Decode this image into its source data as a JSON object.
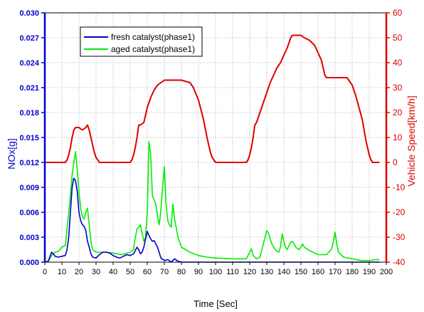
{
  "chart_data": {
    "type": "line",
    "xlabel": "Time [Sec]",
    "ylabel_left": "NOx[g]",
    "ylabel_right": "Vehicle Speed[km/h]",
    "xlim": [
      0,
      200
    ],
    "ylim_left": [
      0,
      0.03
    ],
    "ylim_right": [
      -40,
      60
    ],
    "x_ticks": [
      0,
      10,
      20,
      30,
      40,
      50,
      60,
      70,
      80,
      90,
      100,
      110,
      120,
      130,
      140,
      150,
      160,
      170,
      180,
      190,
      200
    ],
    "y_left_ticks": [
      "0.000",
      "0.003",
      "0.006",
      "0.009",
      "0.012",
      "0.015",
      "0.018",
      "0.021",
      "0.024",
      "0.027",
      "0.030"
    ],
    "y_right_ticks": [
      "-40",
      "-30",
      "-20",
      "-10",
      "0",
      "10",
      "20",
      "30",
      "40",
      "50",
      "60"
    ],
    "grid": true,
    "legend_position": "top-left",
    "colors": {
      "fresh": "#0000cc",
      "aged": "#00ee00",
      "speed": "#dd0000",
      "left_axis": "#0000cc",
      "right_axis": "#dd0000"
    },
    "series": [
      {
        "name": "fresh catalyst(phase1)",
        "axis": "left",
        "color": "#0000cc",
        "x": [
          0,
          2,
          4,
          5,
          6,
          8,
          10,
          12,
          13,
          14,
          15,
          16,
          17,
          18,
          19,
          20,
          21,
          22,
          23,
          24,
          25,
          26,
          27,
          28,
          30,
          32,
          34,
          36,
          38,
          40,
          42,
          44,
          46,
          48,
          50,
          52,
          53,
          54,
          55,
          56,
          57,
          58,
          59,
          60,
          61,
          62,
          63,
          64,
          65,
          66,
          68,
          70,
          72,
          74,
          76,
          78,
          80,
          85,
          90,
          100,
          120,
          140,
          160,
          180,
          196
        ],
        "y": [
          0.0,
          0.0001,
          0.0012,
          0.001,
          0.0007,
          0.0006,
          0.0007,
          0.0008,
          0.0015,
          0.003,
          0.006,
          0.009,
          0.0101,
          0.0098,
          0.0085,
          0.006,
          0.005,
          0.0045,
          0.0043,
          0.0038,
          0.0025,
          0.0018,
          0.001,
          0.0006,
          0.0005,
          0.0009,
          0.0012,
          0.0012,
          0.0011,
          0.0008,
          0.0006,
          0.0005,
          0.0007,
          0.0009,
          0.0008,
          0.001,
          0.0014,
          0.0018,
          0.0015,
          0.001,
          0.0012,
          0.0018,
          0.0028,
          0.0037,
          0.0032,
          0.0028,
          0.0025,
          0.0026,
          0.0022,
          0.0018,
          0.0005,
          0.0002,
          0.0003,
          0.0,
          0.0004,
          0.0001,
          0.0,
          0.0,
          0.0,
          0.0,
          0.0,
          0.0,
          0.0,
          0.0,
          0.0
        ]
      },
      {
        "name": "aged catalyst(phase1)",
        "axis": "left",
        "color": "#00ee00",
        "x": [
          0,
          2,
          4,
          6,
          8,
          10,
          12,
          13,
          14,
          15,
          16,
          17,
          18,
          19,
          20,
          21,
          22,
          23,
          24,
          25,
          26,
          27,
          28,
          30,
          35,
          40,
          45,
          50,
          52,
          53,
          54,
          55,
          56,
          57,
          58,
          59,
          60,
          61,
          62,
          63,
          64,
          65,
          66,
          67,
          68,
          69,
          70,
          71,
          72,
          73,
          74,
          75,
          76,
          78,
          80,
          85,
          90,
          95,
          100,
          110,
          118,
          120,
          121,
          122,
          124,
          126,
          127,
          128,
          129,
          130,
          131,
          132,
          133,
          134,
          135,
          136,
          137,
          138,
          139,
          140,
          141,
          142,
          143,
          144,
          145,
          146,
          147,
          148,
          149,
          150,
          151,
          152,
          155,
          160,
          165,
          168,
          169,
          170,
          171,
          172,
          175,
          180,
          185,
          190,
          194,
          196
        ],
        "y": [
          0.0,
          0.0001,
          0.0008,
          0.0012,
          0.0013,
          0.0018,
          0.002,
          0.004,
          0.006,
          0.008,
          0.0105,
          0.012,
          0.0133,
          0.011,
          0.0085,
          0.0065,
          0.0055,
          0.0052,
          0.006,
          0.0065,
          0.0045,
          0.0025,
          0.0015,
          0.0012,
          0.0012,
          0.0011,
          0.0009,
          0.0012,
          0.0015,
          0.003,
          0.004,
          0.0042,
          0.0045,
          0.0035,
          0.0025,
          0.003,
          0.006,
          0.0145,
          0.013,
          0.008,
          0.0075,
          0.007,
          0.0055,
          0.0045,
          0.0063,
          0.009,
          0.0115,
          0.007,
          0.005,
          0.0045,
          0.0042,
          0.007,
          0.0052,
          0.003,
          0.0018,
          0.0012,
          0.0008,
          0.0006,
          0.0005,
          0.0004,
          0.0004,
          0.0012,
          0.0016,
          0.0008,
          0.0004,
          0.0006,
          0.0014,
          0.0022,
          0.003,
          0.0038,
          0.0035,
          0.0028,
          0.0022,
          0.0018,
          0.0015,
          0.0013,
          0.0012,
          0.0018,
          0.0034,
          0.0025,
          0.0018,
          0.0015,
          0.002,
          0.0024,
          0.0025,
          0.0022,
          0.0018,
          0.0016,
          0.0015,
          0.0018,
          0.0022,
          0.0018,
          0.0014,
          0.0009,
          0.0009,
          0.0016,
          0.0025,
          0.0036,
          0.0022,
          0.0012,
          0.0006,
          0.0004,
          0.0002,
          0.0002,
          0.0003,
          0.0003
        ]
      },
      {
        "name": "Vehicle Speed",
        "axis": "right",
        "color": "#dd0000",
        "x": [
          0,
          12,
          13,
          14,
          15,
          16,
          17,
          18,
          20,
          22,
          24,
          25,
          26,
          27,
          28,
          29,
          30,
          31,
          32,
          40,
          50,
          51,
          52,
          53,
          54,
          55,
          56,
          58,
          60,
          62,
          64,
          66,
          68,
          70,
          75,
          80,
          85,
          87,
          90,
          93,
          95,
          97,
          98,
          99,
          100,
          110,
          118,
          119,
          120,
          121,
          122,
          123,
          124,
          126,
          128,
          130,
          132,
          134,
          136,
          138,
          140,
          142,
          143,
          144,
          145,
          146,
          148,
          150,
          152,
          155,
          158,
          160,
          162,
          163,
          164,
          165,
          170,
          175,
          177,
          178,
          180,
          182,
          184,
          186,
          187,
          188,
          189,
          190,
          191,
          192,
          195,
          196
        ],
        "y": [
          0,
          0,
          1,
          3,
          6,
          10,
          13,
          14,
          14,
          13,
          14,
          15,
          13,
          10,
          7,
          4,
          2,
          1,
          0,
          0,
          0,
          1,
          3,
          6,
          10,
          15,
          15,
          16,
          22,
          26,
          29,
          31,
          32,
          33,
          33,
          33,
          32,
          30,
          25,
          17,
          10,
          4,
          2,
          1,
          0,
          0,
          0,
          1,
          3,
          6,
          10,
          15,
          16,
          20,
          24,
          28,
          32,
          35,
          38,
          40,
          43,
          46,
          48,
          50,
          51,
          51,
          51,
          51,
          50,
          49,
          47,
          44,
          41,
          38,
          35,
          34,
          34,
          34,
          34,
          33,
          31,
          27,
          22,
          17,
          13,
          9,
          6,
          3,
          1,
          0,
          0,
          0
        ]
      }
    ]
  }
}
